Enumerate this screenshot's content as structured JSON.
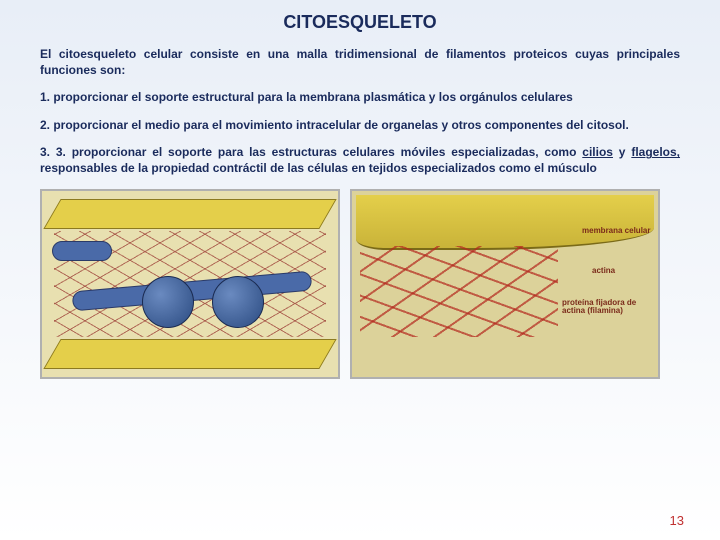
{
  "title": "CITOESQUELETO",
  "intro": "El citoesqueleto celular consiste en una malla tridimensional de filamentos proteicos cuyas principales funciones son:",
  "item1": "1.  proporcionar el soporte estructural para la membrana plasmática y los orgánulos celulares",
  "item2": "2.  proporcionar el medio para el movimiento intracelular de organelas y otros componentes del citosol.",
  "item3_pre": "3. 3. proporcionar el soporte para las estructuras celulares móviles especializadas, como ",
  "item3_link1": "cilios",
  "item3_mid": " y ",
  "item3_link2": "flagelos,",
  "item3_post": " responsables de la propiedad contráctil de las células en tejidos especializados como el músculo",
  "figure_right": {
    "label_membrane": "membrana celular",
    "label_actin": "actina",
    "label_protein": "proteína fijadora de actina (filamina)"
  },
  "page_number": "13",
  "colors": {
    "heading": "#1a2b5c",
    "pagenum": "#c03030",
    "membrane": "#e4cf4a",
    "tube": "#4a6aa8",
    "actin": "#b42820"
  }
}
